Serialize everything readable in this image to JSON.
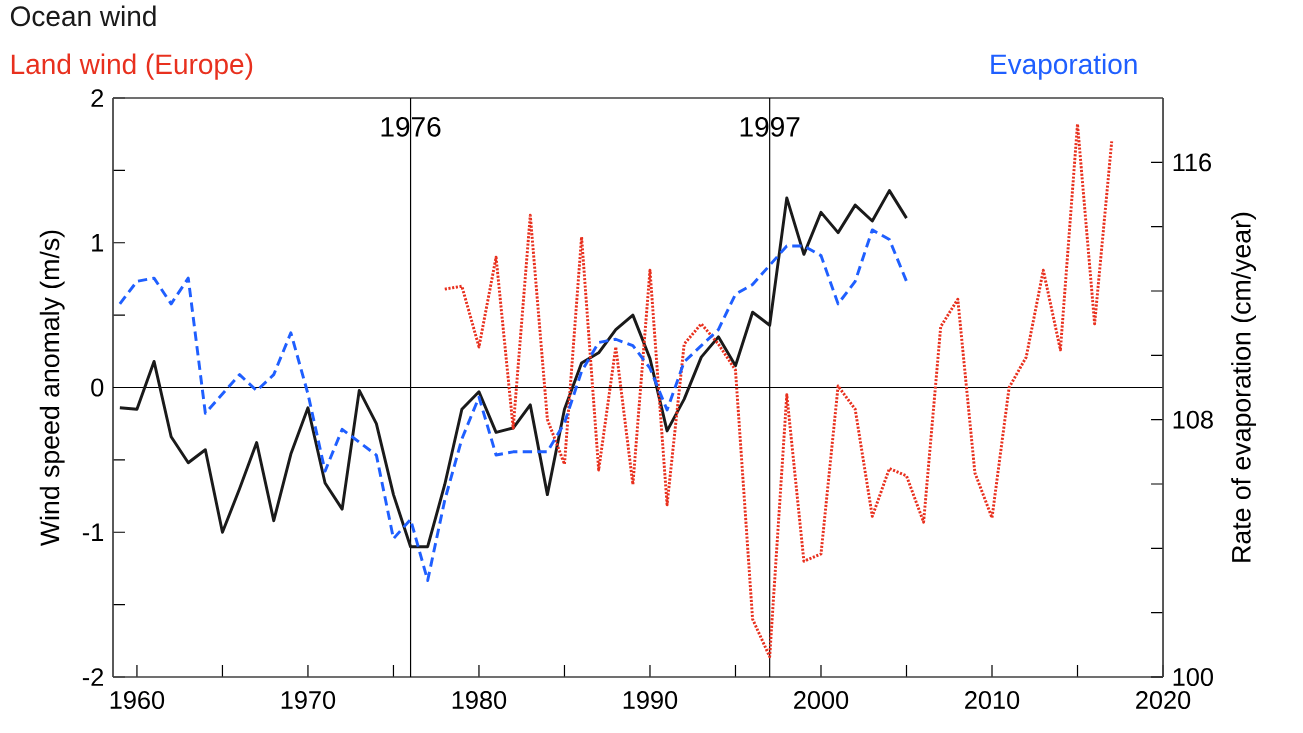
{
  "chart_data": {
    "type": "line",
    "xlim": [
      1958.6,
      2020
    ],
    "xticks": [
      1960,
      {
        "value": 1965,
        "label": null
      },
      1970,
      {
        "value": 1975,
        "label": null
      },
      1980,
      {
        "value": 1985,
        "label": null
      },
      1990,
      {
        "value": 1995,
        "label": null
      },
      2000,
      {
        "value": 2005,
        "label": null
      },
      2010,
      {
        "value": 2015,
        "label": null
      },
      2020
    ],
    "ylim": [
      -2,
      2
    ],
    "yticks": [
      -2,
      {
        "value": -1.5,
        "label": null
      },
      -1,
      {
        "value": -0.5,
        "label": null
      },
      0,
      {
        "value": 0.5,
        "label": null
      },
      1,
      {
        "value": 1.5,
        "label": null
      },
      2
    ],
    "y2lim": [
      100,
      118
    ],
    "y2ticks": [
      100,
      {
        "value": 102,
        "label": null
      },
      {
        "value": 104,
        "label": null
      },
      {
        "value": 106,
        "label": null
      },
      108,
      {
        "value": 110,
        "label": null
      },
      {
        "value": 112,
        "label": null
      },
      {
        "value": 114,
        "label": null
      },
      116
    ],
    "ylabel": "Wind speed anomaly (m/s)",
    "y2label": "Rate of evaporation (cm/year)",
    "legend": "top",
    "grid": false,
    "marker": "none",
    "ref_lines": [
      {
        "axis": "x",
        "value": 1976,
        "label": "1976",
        "color": "#000000"
      },
      {
        "axis": "x",
        "value": 1997,
        "label": "1997",
        "color": "#000000"
      },
      {
        "axis": "y",
        "value": 0,
        "color": "#000000"
      }
    ],
    "series": [
      {
        "name": "Ocean wind",
        "color": "#1a1a1a",
        "line_style": "solid",
        "x": [
          1959,
          1960,
          1961,
          1962,
          1963,
          1964,
          1965,
          1966,
          1967,
          1968,
          1969,
          1970,
          1971,
          1972,
          1973,
          1974,
          1975,
          1976,
          1977,
          1978,
          1979,
          1980,
          1981,
          1982,
          1983,
          1984,
          1985,
          1986,
          1987,
          1988,
          1989,
          1990,
          1991,
          1992,
          1993,
          1994,
          1995,
          1996,
          1997,
          1998,
          1999,
          2000,
          2001,
          2002,
          2003,
          2004,
          2005
        ],
        "values": [
          -0.14,
          -0.15,
          0.18,
          -0.34,
          -0.52,
          -0.43,
          -1.0,
          -0.7,
          -0.38,
          -0.92,
          -0.46,
          -0.14,
          -0.66,
          -0.84,
          -0.02,
          -0.25,
          -0.74,
          -1.1,
          -1.1,
          -0.67,
          -0.15,
          -0.03,
          -0.31,
          -0.28,
          -0.12,
          -0.74,
          -0.15,
          0.17,
          0.24,
          0.4,
          0.5,
          0.2,
          -0.3,
          -0.08,
          0.21,
          0.35,
          0.15,
          0.52,
          0.43,
          1.31,
          0.92,
          1.21,
          1.07,
          1.26,
          1.15,
          1.36,
          1.17
        ]
      },
      {
        "name": "Land wind (Europe)",
        "color": "#e8301e",
        "line_style": "dotted",
        "x": [
          1978,
          1979,
          1980,
          1981,
          1982,
          1983,
          1984,
          1985,
          1986,
          1987,
          1988,
          1989,
          1990,
          1991,
          1992,
          1993,
          1994,
          1995,
          1996,
          1997,
          1998,
          1999,
          2000,
          2001,
          2002,
          2003,
          2004,
          2005,
          2006,
          2007,
          2008,
          2009,
          2010,
          2011,
          2012,
          2013,
          2014,
          2015,
          2016,
          2017
        ],
        "values": [
          0.68,
          0.7,
          0.28,
          0.9,
          -0.28,
          1.19,
          -0.22,
          -0.53,
          1.04,
          -0.57,
          0.28,
          -0.67,
          0.81,
          -0.81,
          0.3,
          0.44,
          0.3,
          0.12,
          -1.6,
          -1.86,
          -0.05,
          -1.2,
          -1.15,
          0.01,
          -0.15,
          -0.89,
          -0.56,
          -0.61,
          -0.93,
          0.42,
          0.61,
          -0.59,
          -0.9,
          0.0,
          0.21,
          0.81,
          0.26,
          1.82,
          0.44,
          1.7
        ]
      },
      {
        "name": "Evaporation",
        "color": "#1f5fff",
        "line_style": "dashed",
        "axis": "y2",
        "x": [
          1959,
          1960,
          1961,
          1962,
          1963,
          1964,
          1965,
          1966,
          1967,
          1968,
          1969,
          1970,
          1971,
          1972,
          1973,
          1974,
          1975,
          1976,
          1977,
          1978,
          1979,
          1980,
          1981,
          1982,
          1983,
          1984,
          1985,
          1986,
          1987,
          1988,
          1989,
          1990,
          1991,
          1992,
          1993,
          1994,
          1995,
          1996,
          1997,
          1998,
          1999,
          2000,
          2001,
          2002,
          2003,
          2004,
          2005
        ],
        "values": [
          111.6,
          112.3,
          112.4,
          111.6,
          112.4,
          108.2,
          108.8,
          109.4,
          108.9,
          109.4,
          110.7,
          108.8,
          106.4,
          107.7,
          107.3,
          106.9,
          104.3,
          104.9,
          103.0,
          105.5,
          107.4,
          108.7,
          106.9,
          107.0,
          107.0,
          107.0,
          107.9,
          109.5,
          110.4,
          110.5,
          110.3,
          109.6,
          108.3,
          109.8,
          110.3,
          110.8,
          111.9,
          112.2,
          112.8,
          113.4,
          113.4,
          113.1,
          111.6,
          112.3,
          113.9,
          113.6,
          112.3
        ]
      }
    ]
  }
}
